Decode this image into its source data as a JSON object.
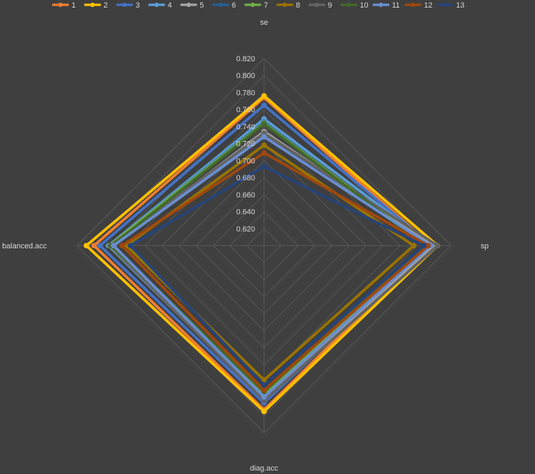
{
  "chart_data": {
    "type": "radar",
    "axes": [
      "se",
      "sp",
      "diag.acc",
      "balanced.acc"
    ],
    "rlim": [
      0.6,
      0.82
    ],
    "ticks": [
      "0.620",
      "0.640",
      "0.660",
      "0.680",
      "0.700",
      "0.720",
      "0.740",
      "0.760",
      "0.780",
      "0.800",
      "0.820"
    ],
    "tick_values": [
      0.62,
      0.64,
      0.66,
      0.68,
      0.7,
      0.72,
      0.74,
      0.76,
      0.78,
      0.8,
      0.82
    ],
    "legend_position": "top",
    "series": [
      {
        "name": "1",
        "color": "#ed7d31",
        "values": [
          0.774,
          0.797,
          0.793,
          0.8
        ]
      },
      {
        "name": "2",
        "color": "#ffc000",
        "values": [
          0.776,
          0.804,
          0.795,
          0.809
        ]
      },
      {
        "name": "3",
        "color": "#4472c4",
        "values": [
          0.765,
          0.797,
          0.785,
          0.793
        ]
      },
      {
        "name": "4",
        "color": "#5b9bd5",
        "values": [
          0.749,
          0.798,
          0.78,
          0.783
        ]
      },
      {
        "name": "5",
        "color": "#a5a5a5",
        "values": [
          0.734,
          0.799,
          0.779,
          0.777
        ]
      },
      {
        "name": "6",
        "color": "#255e91",
        "values": [
          0.745,
          0.79,
          0.776,
          0.782
        ]
      },
      {
        "name": "7",
        "color": "#70ad47",
        "values": [
          0.744,
          0.791,
          0.775,
          0.782
        ]
      },
      {
        "name": "8",
        "color": "#997300",
        "values": [
          0.718,
          0.776,
          0.758,
          0.762
        ]
      },
      {
        "name": "9",
        "color": "#636363",
        "values": [
          0.732,
          0.804,
          0.782,
          0.781
        ]
      },
      {
        "name": "10",
        "color": "#43682b",
        "values": [
          0.743,
          0.789,
          0.772,
          0.779
        ]
      },
      {
        "name": "11",
        "color": "#698ed0",
        "values": [
          0.728,
          0.796,
          0.778,
          0.777
        ]
      },
      {
        "name": "12",
        "color": "#9e480e",
        "values": [
          0.709,
          0.793,
          0.77,
          0.767
        ]
      },
      {
        "name": "13",
        "color": "#264478",
        "values": [
          0.693,
          0.788,
          0.764,
          0.757
        ]
      }
    ]
  }
}
